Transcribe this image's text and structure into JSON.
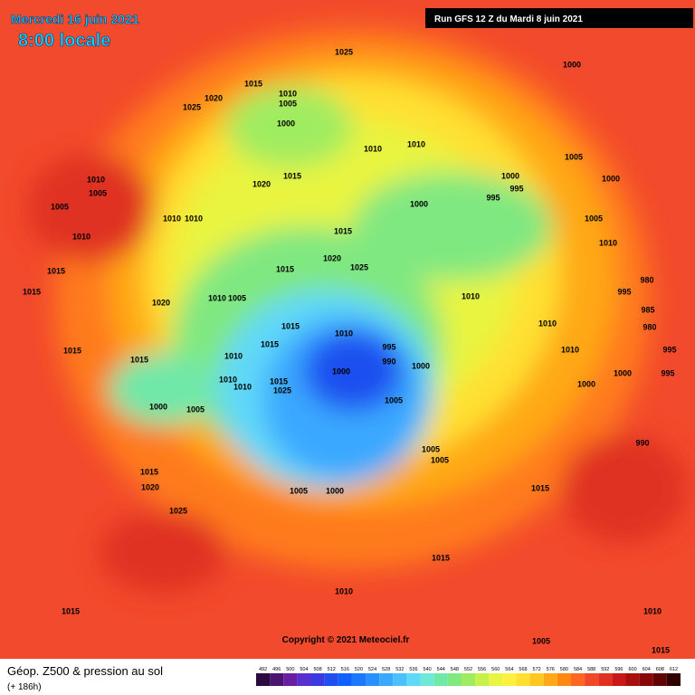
{
  "header": {
    "date": "Mercredi 16 juin 2021",
    "time": "8:00 locale",
    "run": "Run GFS 12 Z du Mardi 8 juin 2021"
  },
  "isobar_labels": [
    "1025",
    "1000",
    "1015",
    "1010",
    "1005",
    "1020",
    "1025",
    "1000",
    "1010",
    "1010",
    "1005",
    "1015",
    "1020",
    "1000",
    "995",
    "995",
    "1010",
    "1005",
    "1005",
    "1010",
    "1010",
    "1000",
    "1005",
    "1015",
    "1010",
    "1015",
    "1015",
    "1020",
    "1025",
    "1015",
    "1010",
    "1005",
    "1020",
    "1010",
    "995",
    "985",
    "980",
    "980",
    "1010",
    "1015",
    "1010",
    "1015",
    "1015",
    "1010",
    "995",
    "990",
    "1000",
    "995",
    "1000",
    "995",
    "1015",
    "1010",
    "1010",
    "1010",
    "1015",
    "1025",
    "1000",
    "1005",
    "1000",
    "1000",
    "1005",
    "990",
    "1005",
    "1005",
    "1015",
    "1020",
    "1015",
    "1005",
    "1000",
    "1025",
    "1015",
    "1010",
    "1015",
    "1010",
    "1005",
    "1015",
    "1000",
    "1010"
  ],
  "copyright": "Copyright © 2021 Meteociel.fr",
  "legend": {
    "title": "Géop. Z500 & pression au sol",
    "lead_time": "(+ 186h)",
    "levels": [
      492,
      496,
      500,
      504,
      508,
      512,
      516,
      520,
      524,
      528,
      532,
      536,
      540,
      544,
      548,
      552,
      556,
      560,
      564,
      568,
      572,
      576,
      580,
      584,
      588,
      592,
      596,
      600,
      604,
      608,
      612
    ],
    "colors": [
      "#2b0a3d",
      "#4a1470",
      "#6a1fa0",
      "#5a2fd0",
      "#3a3ae0",
      "#1f4ff0",
      "#1060ff",
      "#1c78ff",
      "#2a90ff",
      "#3aa8ff",
      "#4cc0ff",
      "#60d8f8",
      "#70e8d8",
      "#70e8a8",
      "#80e880",
      "#a0ec60",
      "#c8f048",
      "#e8f440",
      "#fff040",
      "#ffe030",
      "#ffc820",
      "#ffa818",
      "#ff8810",
      "#ff6820",
      "#f04828",
      "#e03020",
      "#c81818",
      "#a81010",
      "#880808",
      "#600404",
      "#300000"
    ]
  }
}
